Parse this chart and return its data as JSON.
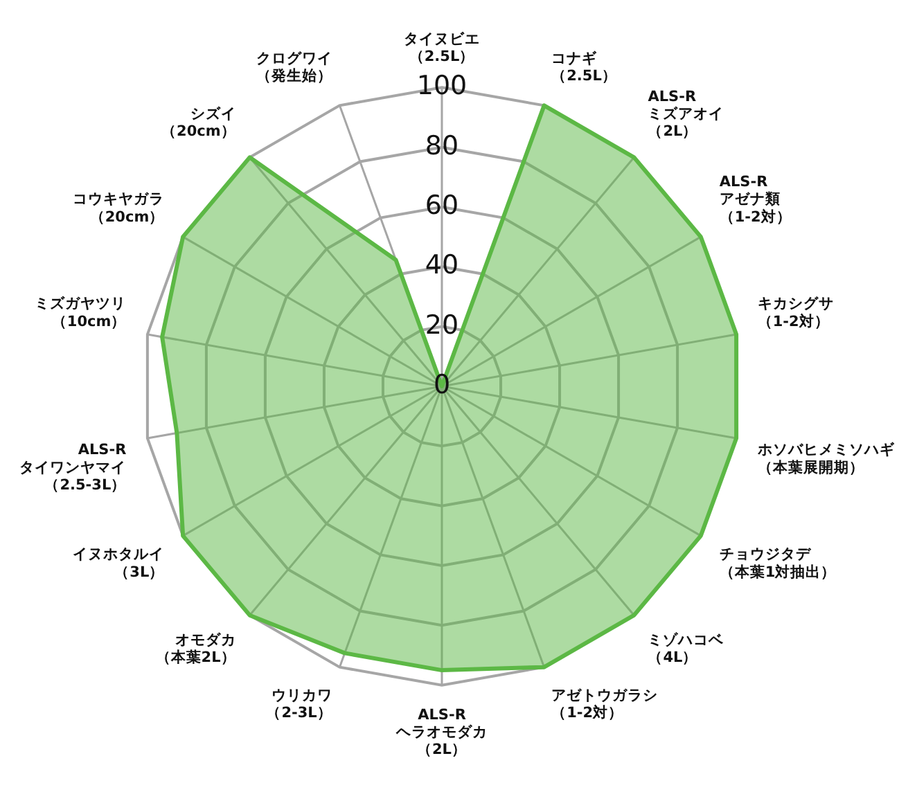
{
  "chart_data": {
    "type": "radar",
    "categories": [
      "タイヌビエ（2.5L）",
      "コナギ（2.5L）",
      "ALS-R ミズアオイ（2L）",
      "ALS-R アゼナ類（1-2対）",
      "キカシグサ（1-2対）",
      "ホソバヒメミソハギ（本葉展開期）",
      "チョウジタデ（本葉1対抽出）",
      "ミゾハコベ（4L）",
      "アゼトウガラシ（1-2対）",
      "ALS-R ヘラオモダカ（2L）",
      "ウリカワ（2-3L）",
      "オモダカ（本葉2L）",
      "イヌホタルイ（3L）",
      "ALS-R タイワンヤマイ（2.5-3L）",
      "ミズガヤツリ（10cm）",
      "コウキヤガラ（20cm）",
      "シズイ（20cm）",
      "クログワイ（発生始）"
    ],
    "series": [
      {
        "color": "#5cb845",
        "values": [
          0,
          100,
          100,
          100,
          100,
          100,
          100,
          100,
          100,
          95,
          95,
          100,
          100,
          90,
          95,
          100,
          100,
          45
        ]
      }
    ],
    "ylim": [
      0,
      100
    ],
    "yticks": [
      0,
      20,
      40,
      60,
      80,
      100
    ],
    "grid": true,
    "marker": "none"
  }
}
